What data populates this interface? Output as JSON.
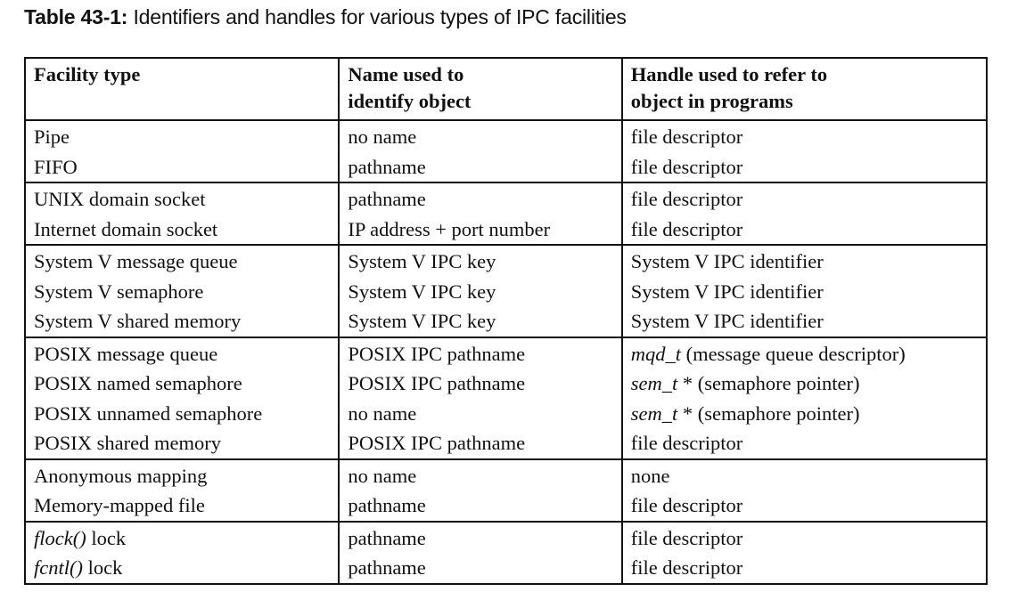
{
  "caption": {
    "label": "Table 43-1:",
    "text": "Identifiers and handles for various types of IPC facilities"
  },
  "headers": {
    "facility": [
      "Facility type"
    ],
    "name": [
      "Name used to",
      "identify object"
    ],
    "handle": [
      "Handle used to refer to",
      "object in programs"
    ]
  },
  "groups": [
    {
      "rows": [
        {
          "facility": "Pipe",
          "name": "no name",
          "handle": "file descriptor"
        },
        {
          "facility": "FIFO",
          "name": "pathname",
          "handle": "file descriptor"
        }
      ]
    },
    {
      "rows": [
        {
          "facility": "UNIX domain socket",
          "name": "pathname",
          "handle": "file descriptor"
        },
        {
          "facility": "Internet domain socket",
          "name": "IP address + port number",
          "handle": "file descriptor"
        }
      ]
    },
    {
      "rows": [
        {
          "facility": "System V message queue",
          "name": "System V IPC key",
          "handle": "System V IPC identifier"
        },
        {
          "facility": "System V semaphore",
          "name": "System V IPC key",
          "handle": "System V IPC identifier"
        },
        {
          "facility": "System V shared memory",
          "name": "System V IPC key",
          "handle": "System V IPC identifier"
        }
      ]
    },
    {
      "rows": [
        {
          "facility": "POSIX message queue",
          "name": "POSIX IPC pathname",
          "handle_code": "mqd_t",
          "handle": " (message queue descriptor)"
        },
        {
          "facility": "POSIX named semaphore",
          "name": "POSIX IPC pathname",
          "handle_code": "sem_t",
          "handle": " * (semaphore pointer)"
        },
        {
          "facility": "POSIX unnamed semaphore",
          "name": "no name",
          "handle_code": "sem_t",
          "handle": " * (semaphore pointer)"
        },
        {
          "facility": "POSIX shared memory",
          "name": "POSIX IPC pathname",
          "handle": "file descriptor"
        }
      ]
    },
    {
      "rows": [
        {
          "facility": "Anonymous mapping",
          "name": "no name",
          "handle": "none"
        },
        {
          "facility": "Memory-mapped file",
          "name": "pathname",
          "handle": "file descriptor"
        }
      ]
    },
    {
      "rows": [
        {
          "facility_code": "flock()",
          "facility": " lock",
          "name": "pathname",
          "handle": "file descriptor"
        },
        {
          "facility_code": "fcntl()",
          "facility": " lock",
          "name": "pathname",
          "handle": "file descriptor"
        }
      ]
    }
  ]
}
